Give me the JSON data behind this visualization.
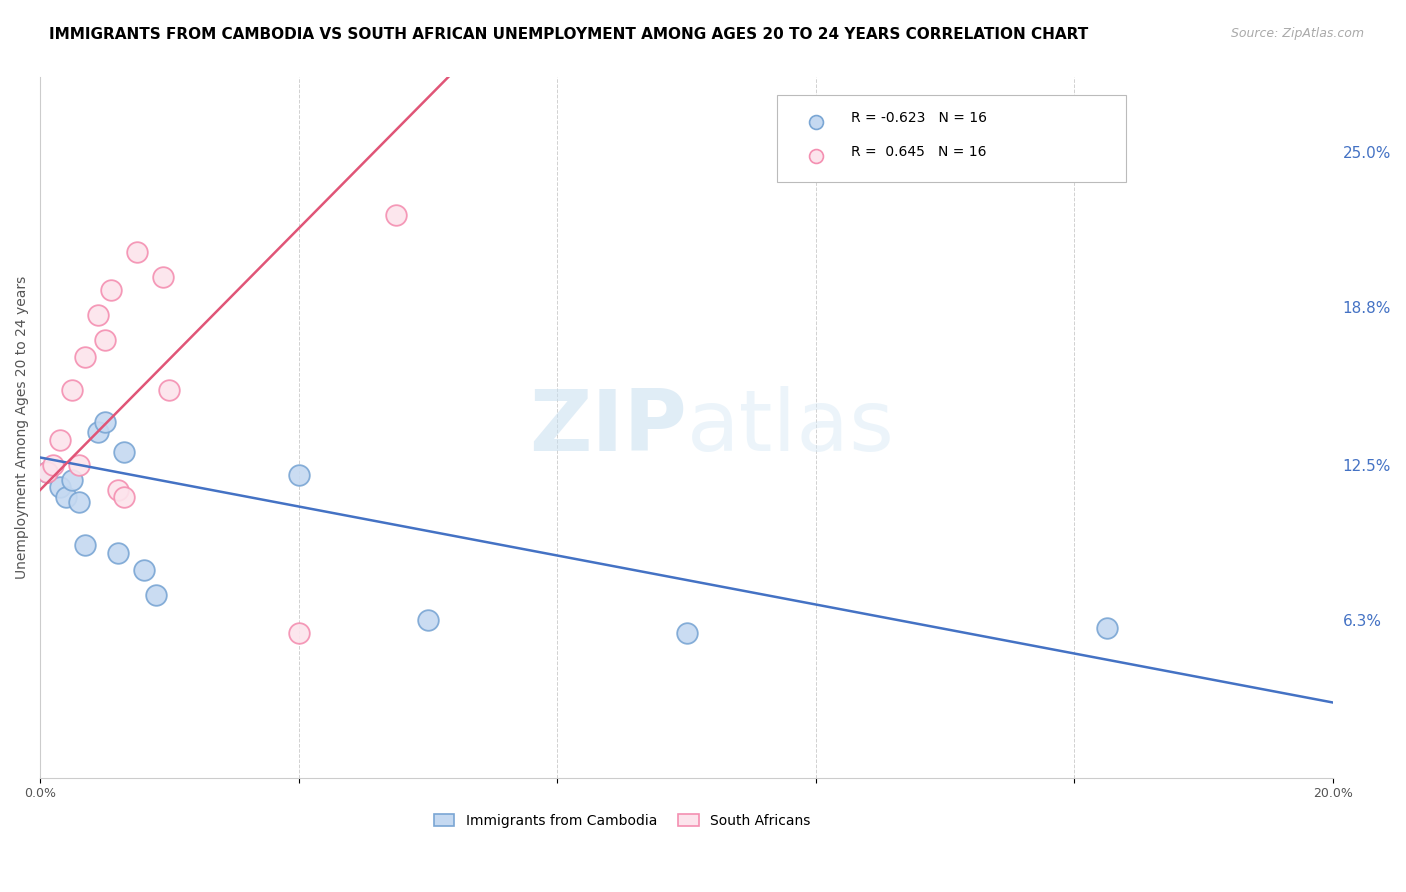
{
  "title": "IMMIGRANTS FROM CAMBODIA VS SOUTH AFRICAN UNEMPLOYMENT AMONG AGES 20 TO 24 YEARS CORRELATION CHART",
  "source": "Source: ZipAtlas.com",
  "ylabel": "Unemployment Among Ages 20 to 24 years",
  "xlim": [
    0.0,
    0.2
  ],
  "ylim": [
    0.0,
    0.28
  ],
  "xticks": [
    0.0,
    0.04,
    0.08,
    0.12,
    0.16,
    0.2
  ],
  "xtick_labels": [
    "0.0%",
    "",
    "",
    "",
    "",
    "20.0%"
  ],
  "ytick_labels_right": [
    "25.0%",
    "18.8%",
    "12.5%",
    "6.3%"
  ],
  "yticks_right": [
    0.25,
    0.188,
    0.125,
    0.063
  ],
  "blue_scatter_x": [
    0.001,
    0.003,
    0.004,
    0.005,
    0.006,
    0.007,
    0.009,
    0.01,
    0.012,
    0.013,
    0.016,
    0.018,
    0.04,
    0.06,
    0.1,
    0.165
  ],
  "blue_scatter_y": [
    0.122,
    0.116,
    0.112,
    0.119,
    0.11,
    0.093,
    0.138,
    0.142,
    0.09,
    0.13,
    0.083,
    0.073,
    0.121,
    0.063,
    0.058,
    0.06
  ],
  "pink_scatter_x": [
    0.001,
    0.002,
    0.003,
    0.005,
    0.006,
    0.007,
    0.009,
    0.01,
    0.011,
    0.012,
    0.013,
    0.015,
    0.019,
    0.02,
    0.04,
    0.055
  ],
  "pink_scatter_y": [
    0.122,
    0.125,
    0.135,
    0.155,
    0.125,
    0.168,
    0.185,
    0.175,
    0.195,
    0.115,
    0.112,
    0.21,
    0.2,
    0.155,
    0.058,
    0.225
  ],
  "blue_line_x0": 0.0,
  "blue_line_y0": 0.128,
  "blue_line_x1": 0.2,
  "blue_line_y1": 0.03,
  "pink_line_x0": 0.0,
  "pink_line_y0": 0.115,
  "pink_line_x1": 0.065,
  "pink_line_y1": 0.285,
  "blue_R": -0.623,
  "blue_N": 16,
  "pink_R": 0.645,
  "pink_N": 16,
  "blue_fill_color": "#c5d9f1",
  "pink_fill_color": "#fce4ec",
  "blue_edge_color": "#7aa6d4",
  "pink_edge_color": "#f48fb1",
  "blue_line_color": "#4472c4",
  "pink_line_color": "#e05577",
  "title_fontsize": 11,
  "source_fontsize": 9,
  "label_fontsize": 9,
  "legend_label_blue": "Immigrants from Cambodia",
  "legend_label_pink": "South Africans",
  "grid_color": "#cccccc"
}
